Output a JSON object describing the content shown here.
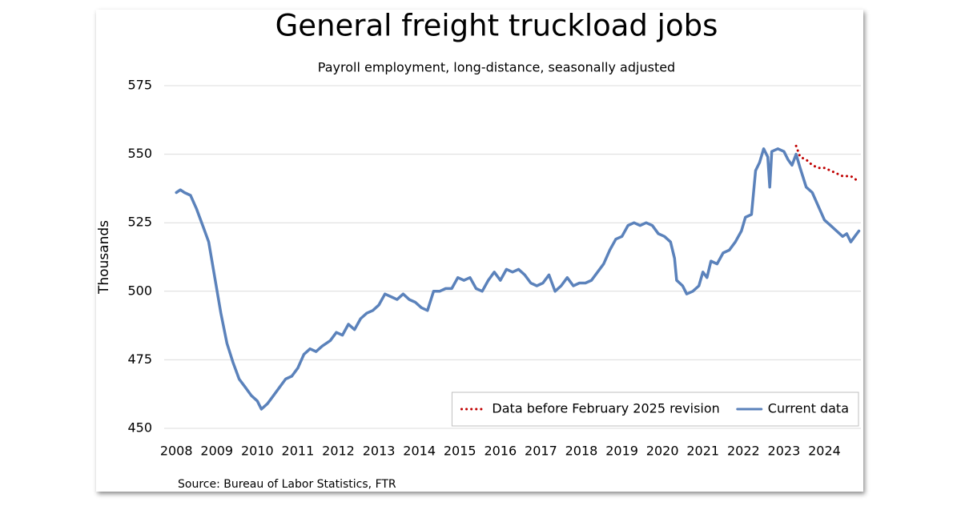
{
  "chart_data": {
    "type": "line",
    "title": "General freight truckload jobs",
    "subtitle": "Payroll employment, long-distance, seasonally adjusted",
    "y_label": "Thousands",
    "source": "Source: Bureau of Labor Statistics, FTR",
    "xlim": [
      2007.7,
      2024.9
    ],
    "xticks": [
      2008,
      2009,
      2010,
      2011,
      2012,
      2013,
      2014,
      2015,
      2016,
      2017,
      2018,
      2019,
      2020,
      2021,
      2022,
      2023,
      2024
    ],
    "ylim": [
      450,
      575
    ],
    "yticks": [
      450,
      475,
      500,
      525,
      550,
      575
    ],
    "grid": true,
    "legend": "lower right",
    "x": [
      2008.0,
      2008.1,
      2008.2,
      2008.35,
      2008.5,
      2008.65,
      2008.8,
      2008.95,
      2009.1,
      2009.25,
      2009.4,
      2009.55,
      2009.7,
      2009.85,
      2010.0,
      2010.1,
      2010.25,
      2010.4,
      2010.55,
      2010.7,
      2010.85,
      2011.0,
      2011.15,
      2011.3,
      2011.45,
      2011.6,
      2011.8,
      2011.95,
      2012.1,
      2012.25,
      2012.4,
      2012.55,
      2012.7,
      2012.85,
      2013.0,
      2013.15,
      2013.3,
      2013.45,
      2013.6,
      2013.75,
      2013.9,
      2014.05,
      2014.2,
      2014.35,
      2014.5,
      2014.65,
      2014.8,
      2014.95,
      2015.1,
      2015.25,
      2015.4,
      2015.55,
      2015.7,
      2015.85,
      2016.0,
      2016.15,
      2016.3,
      2016.45,
      2016.6,
      2016.75,
      2016.9,
      2017.05,
      2017.2,
      2017.35,
      2017.5,
      2017.65,
      2017.8,
      2017.95,
      2018.1,
      2018.25,
      2018.4,
      2018.55,
      2018.7,
      2018.85,
      2019.0,
      2019.15,
      2019.3,
      2019.45,
      2019.6,
      2019.75,
      2019.9,
      2020.05,
      2020.2,
      2020.3,
      2020.35,
      2020.5,
      2020.6,
      2020.75,
      2020.9,
      2021.0,
      2021.1,
      2021.2,
      2021.35,
      2021.5,
      2021.65,
      2021.8,
      2021.95,
      2022.05,
      2022.2,
      2022.3,
      2022.4,
      2022.5,
      2022.6,
      2022.65,
      2022.7,
      2022.85,
      2023.0,
      2023.1,
      2023.2,
      2023.3,
      2023.4,
      2023.55,
      2023.7,
      2023.85,
      2024.0,
      2024.15,
      2024.3,
      2024.45,
      2024.55,
      2024.65,
      2024.75,
      2024.85
    ],
    "series": [
      {
        "name": "Data before February 2025 revision",
        "color": "#c00000",
        "line_style": "dotted",
        "values": [
          null,
          null,
          null,
          null,
          null,
          null,
          null,
          null,
          null,
          null,
          null,
          null,
          null,
          null,
          null,
          null,
          null,
          null,
          null,
          null,
          null,
          null,
          null,
          null,
          null,
          null,
          null,
          null,
          null,
          null,
          null,
          null,
          null,
          null,
          null,
          null,
          null,
          null,
          null,
          null,
          null,
          null,
          null,
          null,
          null,
          null,
          null,
          null,
          null,
          null,
          null,
          null,
          null,
          null,
          null,
          null,
          null,
          null,
          null,
          null,
          null,
          null,
          null,
          null,
          null,
          null,
          null,
          null,
          null,
          null,
          null,
          null,
          null,
          null,
          null,
          null,
          null,
          null,
          null,
          null,
          null,
          null,
          null,
          null,
          null,
          null,
          null,
          null,
          null,
          null,
          null,
          null,
          null,
          null,
          null,
          null,
          null,
          null,
          null,
          null,
          null,
          null,
          null,
          null,
          null,
          null,
          null,
          null,
          null,
          553,
          549,
          548,
          546,
          545,
          545,
          544,
          543,
          542,
          542,
          542,
          541,
          540
        ]
      },
      {
        "name": "Current data",
        "color": "#5b82bb",
        "line_style": "solid",
        "values": [
          536,
          537,
          536,
          535,
          530,
          524,
          518,
          505,
          492,
          481,
          474,
          468,
          465,
          462,
          460,
          457,
          459,
          462,
          465,
          468,
          469,
          472,
          477,
          479,
          478,
          480,
          482,
          485,
          484,
          488,
          486,
          490,
          492,
          493,
          495,
          499,
          498,
          497,
          499,
          497,
          496,
          494,
          493,
          500,
          500,
          501,
          501,
          505,
          504,
          505,
          501,
          500,
          504,
          507,
          504,
          508,
          507,
          508,
          506,
          503,
          502,
          503,
          506,
          500,
          502,
          505,
          502,
          503,
          503,
          504,
          507,
          510,
          515,
          519,
          520,
          524,
          525,
          524,
          525,
          524,
          521,
          520,
          518,
          512,
          504,
          502,
          499,
          500,
          502,
          507,
          505,
          511,
          510,
          514,
          515,
          518,
          522,
          527,
          528,
          544,
          547,
          552,
          549,
          538,
          551,
          552,
          551,
          548,
          546,
          550,
          545,
          538,
          536,
          531,
          526,
          524,
          522,
          520,
          521,
          518,
          520,
          522
        ]
      }
    ]
  }
}
